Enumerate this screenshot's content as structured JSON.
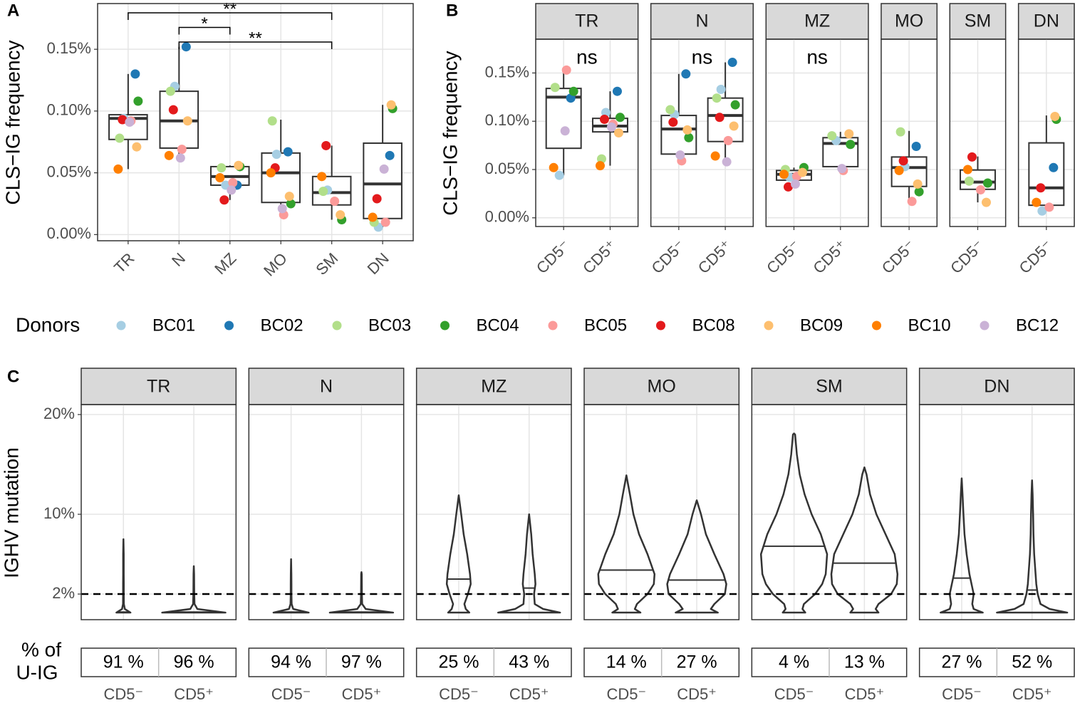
{
  "chart_data": [
    {
      "type": "box",
      "tag": "A",
      "ylabel": "CLS−IG frequency",
      "categories": [
        "TR",
        "N",
        "MZ",
        "MO",
        "SM",
        "DN"
      ],
      "low": [
        0.053,
        0.062,
        0.028,
        0.016,
        0.012,
        0.006
      ],
      "q1": [
        0.077,
        0.07,
        0.04,
        0.026,
        0.024,
        0.013
      ],
      "median": [
        0.094,
        0.092,
        0.047,
        0.05,
        0.034,
        0.041
      ],
      "q3": [
        0.097,
        0.116,
        0.055,
        0.066,
        0.047,
        0.074
      ],
      "high": [
        0.13,
        0.152,
        0.056,
        0.093,
        0.072,
        0.105
      ],
      "series": [
        {
          "name": "BC01",
          "color": "#a6cee3",
          "values": [
            0.094,
            0.12,
            0.04,
            0.065,
            0.036,
            0.006
          ]
        },
        {
          "name": "BC02",
          "color": "#1f78b4",
          "values": [
            0.13,
            0.152,
            0.04,
            0.067,
            null,
            0.064
          ]
        },
        {
          "name": "BC03",
          "color": "#b2df8a",
          "values": [
            0.078,
            0.116,
            0.054,
            0.092,
            0.035,
            0.01
          ]
        },
        {
          "name": "BC04",
          "color": "#33a02c",
          "values": [
            0.108,
            null,
            0.055,
            0.025,
            0.012,
            0.102
          ]
        },
        {
          "name": "BC05",
          "color": "#fb9a99",
          "values": [
            0.092,
            0.069,
            0.042,
            0.016,
            0.027,
            0.01
          ]
        },
        {
          "name": "BC08",
          "color": "#e31a1c",
          "values": [
            0.093,
            0.101,
            0.028,
            0.054,
            0.072,
            0.029
          ]
        },
        {
          "name": "BC09",
          "color": "#fdbf6f",
          "values": [
            0.071,
            0.092,
            0.056,
            0.031,
            0.016,
            0.105
          ]
        },
        {
          "name": "BC10",
          "color": "#ff7f00",
          "values": [
            0.053,
            0.064,
            0.046,
            0.05,
            0.047,
            0.014
          ]
        },
        {
          "name": "BC12",
          "color": "#cab2d6",
          "values": [
            0.091,
            0.062,
            0.036,
            0.021,
            null,
            0.053
          ]
        }
      ],
      "comparisons": [
        {
          "from": "TR",
          "to": "SM",
          "label": "**"
        },
        {
          "from": "N",
          "to": "MZ",
          "label": "*"
        },
        {
          "from": "N",
          "to": "SM",
          "label": "**"
        }
      ],
      "ylim": [
        -0.005,
        0.187
      ],
      "yticks": [
        {
          "value": 0,
          "label": "0.00%"
        },
        {
          "value": 0.05,
          "label": "0.05%"
        },
        {
          "value": 0.1,
          "label": "0.10%"
        },
        {
          "value": 0.15,
          "label": "0.15%"
        }
      ],
      "grid": true,
      "legend_title": "Donors"
    },
    {
      "type": "faceted_box",
      "tag": "B",
      "ylabel": "CLS−IG frequency",
      "ylim": [
        -0.009,
        0.185
      ],
      "yticks": [
        {
          "value": 0,
          "label": "0.00%"
        },
        {
          "value": 0.05,
          "label": "0.05%"
        },
        {
          "value": 0.1,
          "label": "0.10%"
        },
        {
          "value": 0.15,
          "label": "0.15%"
        }
      ],
      "grid": true,
      "facets": [
        {
          "name": "TR",
          "annotation": "ns",
          "groups": [
            {
              "label": "CD5⁻",
              "low": 0.044,
              "q1": 0.072,
              "median": 0.125,
              "q3": 0.134,
              "high": 0.154,
              "points": [
                0.044,
                0.124,
                0.135,
                0.131,
                0.153,
                null,
                null,
                0.052,
                0.09
              ]
            },
            {
              "label": "CD5⁺",
              "low": 0.054,
              "q1": 0.089,
              "median": 0.095,
              "q3": 0.103,
              "high": 0.131,
              "points": [
                0.109,
                0.131,
                0.061,
                0.104,
                0.097,
                0.102,
                0.088,
                0.054,
                0.094
              ]
            }
          ]
        },
        {
          "name": "N",
          "annotation": "ns",
          "groups": [
            {
              "label": "CD5⁻",
              "low": 0.059,
              "q1": 0.066,
              "median": 0.092,
              "q3": 0.106,
              "high": 0.149,
              "points": [
                0.107,
                0.149,
                0.112,
                0.083,
                0.059,
                0.099,
                0.091,
                null,
                0.065
              ]
            },
            {
              "label": "CD5⁺",
              "low": 0.058,
              "q1": 0.079,
              "median": 0.106,
              "q3": 0.124,
              "high": 0.161,
              "points": [
                0.133,
                0.161,
                0.124,
                0.117,
                0.08,
                0.104,
                0.095,
                0.064,
                0.058
              ]
            }
          ]
        },
        {
          "name": "MZ",
          "annotation": "ns",
          "groups": [
            {
              "label": "CD5⁻",
              "low": 0.032,
              "q1": 0.039,
              "median": 0.045,
              "q3": 0.049,
              "high": 0.052,
              "points": [
                0.042,
                null,
                0.05,
                0.052,
                0.043,
                0.032,
                0.047,
                0.045,
                0.035
              ]
            },
            {
              "label": "CD5⁺",
              "low": 0.049,
              "q1": 0.053,
              "median": 0.077,
              "q3": 0.083,
              "high": 0.089,
              "points": [
                0.08,
                null,
                0.085,
                0.076,
                0.049,
                null,
                0.087,
                null,
                0.051
              ]
            }
          ]
        },
        {
          "name": "MO",
          "groups": [
            {
              "label": "CD5⁻",
              "low": 0.017,
              "q1": 0.0325,
              "median": 0.052,
              "q3": 0.063,
              "high": 0.09,
              "points": [
                0.053,
                0.074,
                0.089,
                0.027,
                0.017,
                0.059,
                0.035,
                0.049,
                null
              ]
            }
          ]
        },
        {
          "name": "SM",
          "groups": [
            {
              "label": "CD5⁻",
              "low": 0.016,
              "q1": 0.0295,
              "median": 0.037,
              "q3": 0.0495,
              "high": 0.0635,
              "points": [
                null,
                null,
                0.038,
                0.036,
                0.029,
                0.063,
                0.016,
                0.05,
                null
              ]
            }
          ]
        },
        {
          "name": "DN",
          "groups": [
            {
              "label": "CD5⁻",
              "low": 0.0074,
              "q1": 0.013,
              "median": 0.031,
              "q3": 0.0776,
              "high": 0.106,
              "points": [
                0.007,
                0.052,
                null,
                0.102,
                0.011,
                0.031,
                0.105,
                0.016,
                null
              ]
            }
          ]
        }
      ]
    },
    {
      "type": "violin",
      "tag": "C",
      "ylabel": "IGHV mutation",
      "table_title": [
        "% of",
        "U-IG"
      ],
      "ylim": [
        -0.57,
        21
      ],
      "yticks": [
        {
          "value": 2,
          "label": "2%"
        },
        {
          "value": 10,
          "label": "10%"
        },
        {
          "value": 20,
          "label": "20%"
        }
      ],
      "hline": 2,
      "grid": true,
      "density_levels": [
        0.14,
        0.5,
        1,
        2,
        3,
        4,
        6,
        8,
        10,
        12,
        14,
        16,
        18
      ],
      "facets": [
        {
          "name": "TR",
          "groups": [
            {
              "label": "CD5⁻",
              "max": 7.5,
              "median": 0.2,
              "widths": [
                0.1,
                0.02,
                0.006,
                0.005,
                0.005,
                0.004,
                0.004,
                null,
                null,
                null,
                null,
                null,
                null
              ],
              "u_ig": 91,
              "u_ig_label": "91 %"
            },
            {
              "label": "CD5⁺",
              "max": 4.8,
              "median": 0.2,
              "widths": [
                0.45,
                0.05,
                0.01,
                0.006,
                0.005,
                0.004,
                null,
                null,
                null,
                null,
                null,
                null,
                null
              ],
              "u_ig": 96,
              "u_ig_label": "96 %"
            }
          ]
        },
        {
          "name": "N",
          "groups": [
            {
              "label": "CD5⁻",
              "max": 5.5,
              "median": 0.2,
              "widths": [
                0.25,
                0.03,
                0.008,
                0.005,
                0.005,
                0.004,
                null,
                null,
                null,
                null,
                null,
                null,
                null
              ],
              "u_ig": 94,
              "u_ig_label": "94 %"
            },
            {
              "label": "CD5⁺",
              "max": 4.2,
              "median": 0.2,
              "widths": [
                0.45,
                0.06,
                0.01,
                0.006,
                0.005,
                0.004,
                null,
                null,
                null,
                null,
                null,
                null,
                null
              ],
              "u_ig": 97,
              "u_ig_label": "97 %"
            }
          ]
        },
        {
          "name": "MZ",
          "groups": [
            {
              "label": "CD5⁻",
              "max": 11.9,
              "median": 3.5,
              "widths": [
                0.15,
                0.1,
                0.08,
                0.13,
                0.17,
                0.16,
                0.12,
                0.07,
                0.035,
                null,
                null,
                null,
                null
              ],
              "u_ig": 25,
              "u_ig_label": "25 %"
            },
            {
              "label": "CD5⁺",
              "max": 10,
              "median": 2.6,
              "widths": [
                0.44,
                0.2,
                0.08,
                0.07,
                0.09,
                0.08,
                0.05,
                0.03,
                null,
                null,
                null,
                null,
                null
              ],
              "u_ig": 43,
              "u_ig_label": "43 %"
            }
          ]
        },
        {
          "name": "MO",
          "groups": [
            {
              "label": "CD5⁻",
              "max": 13.9,
              "median": 4.4,
              "widths": [
                0.2,
                0.12,
                0.15,
                0.3,
                0.39,
                0.4,
                0.3,
                0.18,
                0.1,
                0.05,
                null,
                null,
                null
              ],
              "u_ig": 14,
              "u_ig_label": "14 %"
            },
            {
              "label": "CD5⁺",
              "max": 11.4,
              "median": 3.4,
              "widths": [
                0.3,
                0.2,
                0.25,
                0.4,
                0.42,
                0.38,
                0.25,
                0.13,
                0.06,
                null,
                null,
                null,
                null
              ],
              "u_ig": 27,
              "u_ig_label": "27 %"
            }
          ]
        },
        {
          "name": "SM",
          "groups": [
            {
              "label": "CD5⁻",
              "max": 18.1,
              "median": 6.8,
              "widths": [
                0.16,
                0.12,
                0.14,
                0.3,
                0.4,
                0.45,
                0.47,
                0.38,
                0.25,
                0.15,
                0.08,
                0.04,
                0.015
              ],
              "u_ig": 4,
              "u_ig_label": "4 %"
            },
            {
              "label": "CD5⁺",
              "max": 14.7,
              "median": 5.1,
              "widths": [
                0.2,
                0.16,
                0.2,
                0.38,
                0.46,
                0.47,
                0.43,
                0.3,
                0.17,
                0.08,
                0.03,
                null,
                null
              ],
              "u_ig": 13,
              "u_ig_label": "13 %"
            }
          ]
        },
        {
          "name": "DN",
          "groups": [
            {
              "label": "CD5⁻",
              "max": 13.6,
              "median": 3.6,
              "widths": [
                0.3,
                0.17,
                0.15,
                0.17,
                0.14,
                0.11,
                0.07,
                0.04,
                0.025,
                0.012,
                null,
                null,
                null
              ],
              "u_ig": 27,
              "u_ig_label": "27 %"
            },
            {
              "label": "CD5⁺",
              "max": 13.4,
              "median": 2.4,
              "widths": [
                0.5,
                0.25,
                0.12,
                0.08,
                0.06,
                0.05,
                0.03,
                0.02,
                0.015,
                0.008,
                null,
                null,
                null
              ],
              "u_ig": 52,
              "u_ig_label": "52 %"
            }
          ]
        }
      ]
    }
  ]
}
